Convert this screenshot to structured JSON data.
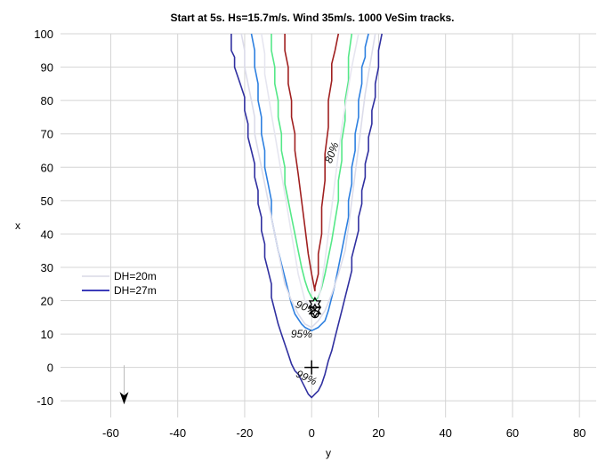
{
  "chart_data": {
    "type": "line",
    "title": "Start at 5s.  Hs=15.7m/s.  Wind 35m/s.  1000 VeSim tracks.",
    "xlabel": "y",
    "ylabel": "x",
    "xlim": [
      -75,
      85
    ],
    "ylim": [
      -15,
      100
    ],
    "xticks": [
      "-60",
      "-40",
      "-20",
      "0",
      "20",
      "40",
      "60",
      "80"
    ],
    "yticks": [
      "100",
      "90",
      "80",
      "70",
      "60",
      "50",
      "40",
      "30",
      "20",
      "10",
      "0",
      "-10"
    ],
    "grid": true,
    "legend": {
      "placement": "left",
      "entries": [
        {
          "label": "DH=20m",
          "color": "#d8d8e6"
        },
        {
          "label": "DH=27m",
          "color": "#2020b0"
        }
      ]
    },
    "series": [
      {
        "color": "#3030a0",
        "x": [
          -24,
          -24,
          -23,
          -23,
          -22,
          -21,
          -20,
          -20,
          -19,
          -19,
          -18,
          -17,
          -17,
          -16,
          -16,
          -15,
          -15,
          -14,
          -14,
          -13,
          -12,
          -12,
          -11,
          -10,
          -9,
          -8,
          -7,
          -6,
          -5,
          -4,
          -3,
          -2,
          -1,
          0,
          1,
          2,
          3,
          4,
          5,
          6,
          7,
          8,
          9,
          10,
          11,
          12,
          12,
          13,
          14,
          14,
          15,
          15,
          16,
          16,
          17,
          17,
          18,
          18,
          19,
          19,
          20,
          20,
          21
        ],
        "y": [
          100,
          95,
          93,
          90,
          87,
          84,
          81,
          77,
          73,
          69,
          65,
          61,
          57,
          53,
          49,
          45,
          41,
          37,
          33,
          29,
          25,
          21,
          17,
          13,
          10,
          7,
          4,
          1,
          -1,
          -2,
          -4,
          -6,
          -8,
          -9,
          -8,
          -7,
          -5,
          -2,
          2,
          5,
          9,
          13,
          17,
          21,
          25,
          29,
          33,
          37,
          41,
          45,
          49,
          53,
          57,
          61,
          65,
          69,
          73,
          77,
          81,
          85,
          90,
          95,
          100
        ]
      },
      {
        "color": "#2e80e0",
        "x": [
          -18,
          -17,
          -17,
          -16,
          -16,
          -15,
          -15,
          -14,
          -14,
          -13,
          -12,
          -12,
          -11,
          -10,
          -9,
          -8,
          -7,
          -6,
          -5,
          -3,
          -2,
          0,
          2,
          4,
          5,
          6,
          7,
          8,
          9,
          10,
          11,
          11,
          12,
          12,
          13,
          13,
          14,
          14,
          15,
          15,
          16,
          16,
          17
        ],
        "y": [
          100,
          95,
          90,
          85,
          80,
          75,
          70,
          65,
          60,
          55,
          50,
          45,
          40,
          35,
          31,
          27,
          23,
          19,
          16,
          13,
          12,
          11,
          12,
          14,
          17,
          21,
          25,
          30,
          35,
          40,
          45,
          50,
          55,
          60,
          65,
          70,
          75,
          80,
          85,
          90,
          93,
          96,
          100
        ]
      },
      {
        "color": "#55e888",
        "x": [
          -12,
          -12,
          -11,
          -11,
          -10,
          -10,
          -9,
          -9,
          -8,
          -8,
          -7,
          -6,
          -5,
          -4,
          -3,
          -2,
          -1,
          0,
          1,
          2,
          3,
          4,
          5,
          6,
          7,
          8,
          8,
          9,
          9,
          10,
          10,
          11,
          11,
          12
        ],
        "y": [
          100,
          95,
          90,
          85,
          80,
          75,
          70,
          65,
          60,
          55,
          50,
          45,
          40,
          35,
          30,
          26,
          23,
          21,
          20,
          21,
          24,
          28,
          33,
          38,
          44,
          50,
          56,
          62,
          68,
          74,
          80,
          86,
          93,
          100
        ]
      },
      {
        "color": "#a02020",
        "x": [
          -8,
          -8,
          -7,
          -7,
          -6,
          -6,
          -5,
          -5,
          -4,
          -3,
          -2,
          -1,
          0,
          1,
          1,
          2,
          2,
          3,
          3,
          4,
          4,
          5,
          5,
          6,
          6,
          7,
          8
        ],
        "y": [
          100,
          95,
          90,
          85,
          80,
          75,
          70,
          65,
          58,
          50,
          42,
          34,
          28,
          23,
          24,
          28,
          34,
          40,
          48,
          56,
          64,
          72,
          80,
          86,
          91,
          95,
          100
        ]
      },
      {
        "color": "#dcdcea",
        "x": [
          -21,
          -20,
          -20,
          -19,
          -18,
          -17,
          -17,
          -16,
          -15,
          -14,
          -13,
          -12,
          -11,
          -10,
          -9,
          -8,
          -6,
          -4,
          -2,
          0,
          2,
          4,
          6,
          8,
          10,
          11,
          12,
          13,
          14,
          15,
          16,
          17,
          18,
          19
        ],
        "y": [
          100,
          95,
          90,
          85,
          80,
          75,
          70,
          65,
          60,
          55,
          50,
          45,
          40,
          35,
          30,
          25,
          20,
          16,
          13,
          12,
          14,
          17,
          22,
          28,
          35,
          42,
          50,
          58,
          66,
          74,
          82,
          88,
          94,
          100
        ]
      },
      {
        "color": "#e6e6f0",
        "x": [
          -15,
          -14,
          -14,
          -13,
          -12,
          -11,
          -10,
          -9,
          -8,
          -7,
          -6,
          -5,
          -4,
          -3,
          -2,
          0,
          2,
          3,
          4,
          5,
          6,
          7,
          8,
          9,
          10,
          11,
          12,
          13,
          14
        ],
        "y": [
          100,
          94,
          88,
          82,
          76,
          70,
          64,
          58,
          52,
          46,
          40,
          34,
          28,
          24,
          20,
          18,
          20,
          25,
          32,
          40,
          48,
          56,
          64,
          72,
          78,
          84,
          90,
          95,
          100
        ]
      }
    ],
    "contour_labels": [
      {
        "text": "80%",
        "x": 7,
        "y": 64,
        "angle": -70
      },
      {
        "text": "90%",
        "x": -2,
        "y": 17,
        "angle": 20
      },
      {
        "text": "95%",
        "x": -3,
        "y": 9,
        "angle": 0
      },
      {
        "text": "99%",
        "x": -2,
        "y": -4,
        "angle": 25
      }
    ],
    "markers": [
      {
        "symbol": "plus",
        "x": 0,
        "y": 0,
        "color": "#000000"
      },
      {
        "symbol": "star",
        "x": 1,
        "y": 19,
        "color": "#000000"
      },
      {
        "symbol": "star",
        "x": 1,
        "y": 17,
        "color": "#000000"
      },
      {
        "symbol": "circle",
        "x": 1,
        "y": 16,
        "color": "#000000"
      },
      {
        "symbol": "arrow-down",
        "x": -56,
        "y": -10,
        "color": "#000000"
      }
    ]
  }
}
